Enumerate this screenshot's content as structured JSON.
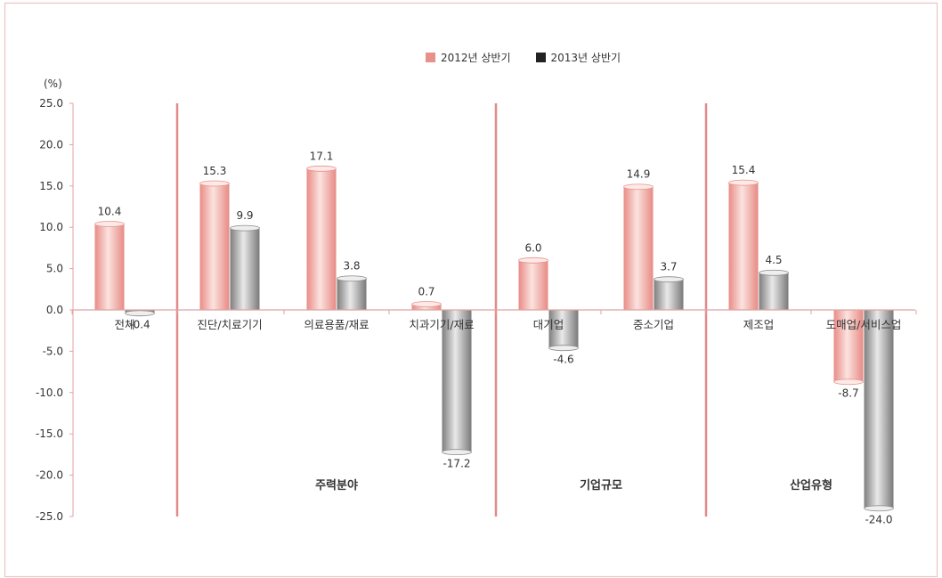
{
  "chart_data": {
    "type": "bar",
    "ylabel": "(%)",
    "ylim": [
      -25,
      25
    ],
    "yticks": [
      "25.0",
      "20.0",
      "15.0",
      "10.0",
      "5.0",
      "0.0",
      "-5.0",
      "-10.0",
      "-15.0",
      "-20.0",
      "-25.0"
    ],
    "ytick_values": [
      25,
      20,
      15,
      10,
      5,
      0,
      -5,
      -10,
      -15,
      -20,
      -25
    ],
    "categories": [
      "전체",
      "진단/치료기기",
      "의료용품/재료",
      "치과기기/재료",
      "대기업",
      "중소기업",
      "제조업",
      "도매업/서비스업"
    ],
    "groups": [
      "주력분야",
      "기업규모",
      "산업유형"
    ],
    "series": [
      {
        "name": "2012년 상반기",
        "values": [
          10.4,
          15.3,
          17.1,
          0.7,
          6.0,
          14.9,
          15.4,
          -8.7
        ],
        "labels": [
          "10.4",
          "15.3",
          "17.1",
          "0.7",
          "6.0",
          "14.9",
          "15.4",
          "-8.7"
        ]
      },
      {
        "name": "2013년 상반기",
        "values": [
          -0.4,
          9.9,
          3.8,
          -17.2,
          -4.6,
          3.7,
          4.5,
          -24.0
        ],
        "labels": [
          "-0.4",
          "9.9",
          "3.8",
          "-17.2",
          "-4.6",
          "3.7",
          "4.5",
          "-24.0"
        ]
      }
    ],
    "colors": {
      "series1": "#e8918b",
      "series2": "#8c8c8c",
      "legend2": "#222222",
      "divider": "#e28a8a",
      "axis": "#e0a3a3"
    },
    "legend_position": "top-center",
    "grid": false
  }
}
